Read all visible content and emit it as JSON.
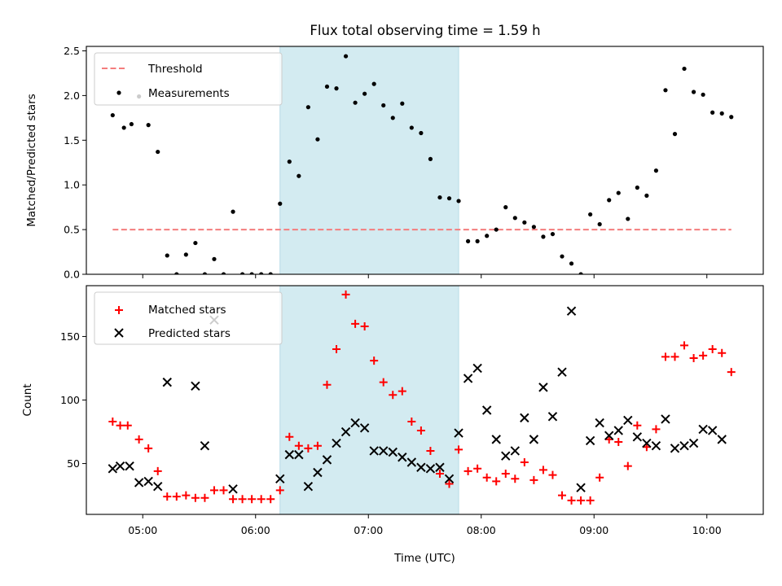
{
  "title": "Flux total observing time = 1.59 h",
  "chart_data": [
    {
      "type": "scatter",
      "ylabel": "Matched/Predicted stars",
      "ylim": [
        0,
        2.55
      ],
      "yticks": [
        "0.0",
        "0.5",
        "1.0",
        "1.5",
        "2.0",
        "2.5"
      ],
      "shaded_interval": [
        "06:13",
        "07:48"
      ],
      "threshold": {
        "name": "Threshold",
        "y": 0.5,
        "x_range": [
          "04:44",
          "10:13"
        ],
        "color": "#f47d7d"
      },
      "series": [
        {
          "name": "Measurements",
          "color": "#000000",
          "points": [
            [
              "04:44",
              1.78
            ],
            [
              "04:50",
              1.64
            ],
            [
              "04:54",
              1.68
            ],
            [
              "04:58",
              1.99
            ],
            [
              "05:03",
              1.67
            ],
            [
              "05:08",
              1.37
            ],
            [
              "05:13",
              0.21
            ],
            [
              "05:18",
              0.0
            ],
            [
              "05:23",
              0.22
            ],
            [
              "05:28",
              0.35
            ],
            [
              "05:33",
              0.0
            ],
            [
              "05:38",
              0.17
            ],
            [
              "05:43",
              0.0
            ],
            [
              "05:48",
              0.7
            ],
            [
              "05:53",
              0.0
            ],
            [
              "05:58",
              0.0
            ],
            [
              "06:03",
              0.0
            ],
            [
              "06:08",
              0.0
            ],
            [
              "06:13",
              0.79
            ],
            [
              "06:18",
              1.26
            ],
            [
              "06:23",
              1.1
            ],
            [
              "06:28",
              1.87
            ],
            [
              "06:33",
              1.51
            ],
            [
              "06:38",
              2.1
            ],
            [
              "06:43",
              2.08
            ],
            [
              "06:48",
              2.44
            ],
            [
              "06:53",
              1.92
            ],
            [
              "06:58",
              2.02
            ],
            [
              "07:03",
              2.13
            ],
            [
              "07:08",
              1.89
            ],
            [
              "07:13",
              1.75
            ],
            [
              "07:18",
              1.91
            ],
            [
              "07:23",
              1.64
            ],
            [
              "07:28",
              1.58
            ],
            [
              "07:33",
              1.29
            ],
            [
              "07:38",
              0.86
            ],
            [
              "07:43",
              0.85
            ],
            [
              "07:48",
              0.82
            ],
            [
              "07:53",
              0.37
            ],
            [
              "07:58",
              0.37
            ],
            [
              "08:03",
              0.43
            ],
            [
              "08:08",
              0.5
            ],
            [
              "08:13",
              0.75
            ],
            [
              "08:18",
              0.63
            ],
            [
              "08:23",
              0.58
            ],
            [
              "08:28",
              0.53
            ],
            [
              "08:33",
              0.42
            ],
            [
              "08:38",
              0.45
            ],
            [
              "08:43",
              0.2
            ],
            [
              "08:48",
              0.12
            ],
            [
              "08:53",
              0.0
            ],
            [
              "08:58",
              0.67
            ],
            [
              "09:03",
              0.56
            ],
            [
              "09:08",
              0.83
            ],
            [
              "09:13",
              0.91
            ],
            [
              "09:18",
              0.62
            ],
            [
              "09:23",
              0.97
            ],
            [
              "09:28",
              0.88
            ],
            [
              "09:33",
              1.16
            ],
            [
              "09:38",
              2.06
            ],
            [
              "09:43",
              1.57
            ],
            [
              "09:48",
              2.3
            ],
            [
              "09:53",
              2.04
            ],
            [
              "09:58",
              2.01
            ],
            [
              "10:03",
              1.81
            ],
            [
              "10:08",
              1.8
            ],
            [
              "10:13",
              1.76
            ]
          ]
        }
      ],
      "legend": "top-left"
    },
    {
      "type": "scatter",
      "xlabel": "Time (UTC)",
      "ylabel": "Count",
      "ylim": [
        10,
        190
      ],
      "yticks": [
        "50",
        "100",
        "150"
      ],
      "xticks": [
        "05:00",
        "06:00",
        "07:00",
        "08:00",
        "09:00",
        "10:00"
      ],
      "shaded_interval": [
        "06:13",
        "07:48"
      ],
      "series": [
        {
          "name": "Matched stars",
          "marker": "plus",
          "color": "#ff0000",
          "points": [
            [
              "04:44",
              83
            ],
            [
              "04:48",
              80
            ],
            [
              "04:52",
              80
            ],
            [
              "04:58",
              69
            ],
            [
              "05:03",
              62
            ],
            [
              "05:08",
              44
            ],
            [
              "05:13",
              24
            ],
            [
              "05:18",
              24
            ],
            [
              "05:23",
              25
            ],
            [
              "05:28",
              23
            ],
            [
              "05:33",
              23
            ],
            [
              "05:38",
              29
            ],
            [
              "05:43",
              29
            ],
            [
              "05:48",
              22
            ],
            [
              "05:53",
              22
            ],
            [
              "05:58",
              22
            ],
            [
              "06:03",
              22
            ],
            [
              "06:08",
              22
            ],
            [
              "06:13",
              29
            ],
            [
              "06:18",
              71
            ],
            [
              "06:23",
              64
            ],
            [
              "06:28",
              62
            ],
            [
              "06:33",
              64
            ],
            [
              "06:38",
              112
            ],
            [
              "06:43",
              140
            ],
            [
              "06:48",
              183
            ],
            [
              "06:53",
              160
            ],
            [
              "06:58",
              158
            ],
            [
              "07:03",
              131
            ],
            [
              "07:08",
              114
            ],
            [
              "07:13",
              104
            ],
            [
              "07:18",
              107
            ],
            [
              "07:23",
              83
            ],
            [
              "07:28",
              76
            ],
            [
              "07:33",
              60
            ],
            [
              "07:38",
              42
            ],
            [
              "07:43",
              34
            ],
            [
              "07:48",
              61
            ],
            [
              "07:53",
              44
            ],
            [
              "07:58",
              46
            ],
            [
              "08:03",
              39
            ],
            [
              "08:08",
              36
            ],
            [
              "08:13",
              42
            ],
            [
              "08:18",
              38
            ],
            [
              "08:23",
              51
            ],
            [
              "08:28",
              37
            ],
            [
              "08:33",
              45
            ],
            [
              "08:38",
              41
            ],
            [
              "08:43",
              25
            ],
            [
              "08:48",
              21
            ],
            [
              "08:53",
              21
            ],
            [
              "08:58",
              21
            ],
            [
              "09:03",
              39
            ],
            [
              "09:08",
              69
            ],
            [
              "09:13",
              67
            ],
            [
              "09:18",
              48
            ],
            [
              "09:23",
              80
            ],
            [
              "09:28",
              63
            ],
            [
              "09:33",
              77
            ],
            [
              "09:38",
              134
            ],
            [
              "09:43",
              134
            ],
            [
              "09:48",
              143
            ],
            [
              "09:53",
              133
            ],
            [
              "09:58",
              135
            ],
            [
              "10:03",
              140
            ],
            [
              "10:08",
              137
            ],
            [
              "10:13",
              122
            ]
          ]
        },
        {
          "name": "Predicted stars",
          "marker": "x",
          "color": "#000000",
          "points": [
            [
              "04:44",
              46
            ],
            [
              "04:48",
              48
            ],
            [
              "04:53",
              48
            ],
            [
              "04:58",
              35
            ],
            [
              "05:03",
              36
            ],
            [
              "05:08",
              32
            ],
            [
              "05:13",
              114
            ],
            [
              "05:28",
              111
            ],
            [
              "05:33",
              64
            ],
            [
              "05:38",
              163
            ],
            [
              "05:48",
              30
            ],
            [
              "06:13",
              38
            ],
            [
              "06:18",
              57
            ],
            [
              "06:23",
              57
            ],
            [
              "06:28",
              32
            ],
            [
              "06:33",
              43
            ],
            [
              "06:38",
              53
            ],
            [
              "06:43",
              66
            ],
            [
              "06:48",
              75
            ],
            [
              "06:53",
              82
            ],
            [
              "06:58",
              78
            ],
            [
              "07:03",
              60
            ],
            [
              "07:08",
              60
            ],
            [
              "07:13",
              59
            ],
            [
              "07:18",
              55
            ],
            [
              "07:23",
              51
            ],
            [
              "07:28",
              47
            ],
            [
              "07:33",
              46
            ],
            [
              "07:38",
              47
            ],
            [
              "07:43",
              38
            ],
            [
              "07:48",
              74
            ],
            [
              "07:53",
              117
            ],
            [
              "07:58",
              125
            ],
            [
              "08:03",
              92
            ],
            [
              "08:08",
              69
            ],
            [
              "08:13",
              56
            ],
            [
              "08:18",
              60
            ],
            [
              "08:23",
              86
            ],
            [
              "08:28",
              69
            ],
            [
              "08:33",
              110
            ],
            [
              "08:38",
              87
            ],
            [
              "08:43",
              122
            ],
            [
              "08:48",
              170
            ],
            [
              "08:53",
              31
            ],
            [
              "08:58",
              68
            ],
            [
              "09:03",
              82
            ],
            [
              "09:08",
              72
            ],
            [
              "09:13",
              76
            ],
            [
              "09:18",
              84
            ],
            [
              "09:23",
              71
            ],
            [
              "09:28",
              66
            ],
            [
              "09:33",
              64
            ],
            [
              "09:38",
              85
            ],
            [
              "09:43",
              62
            ],
            [
              "09:48",
              64
            ],
            [
              "09:53",
              66
            ],
            [
              "09:58",
              77
            ],
            [
              "10:03",
              76
            ],
            [
              "10:08",
              69
            ]
          ]
        }
      ],
      "legend": "top-left"
    }
  ]
}
